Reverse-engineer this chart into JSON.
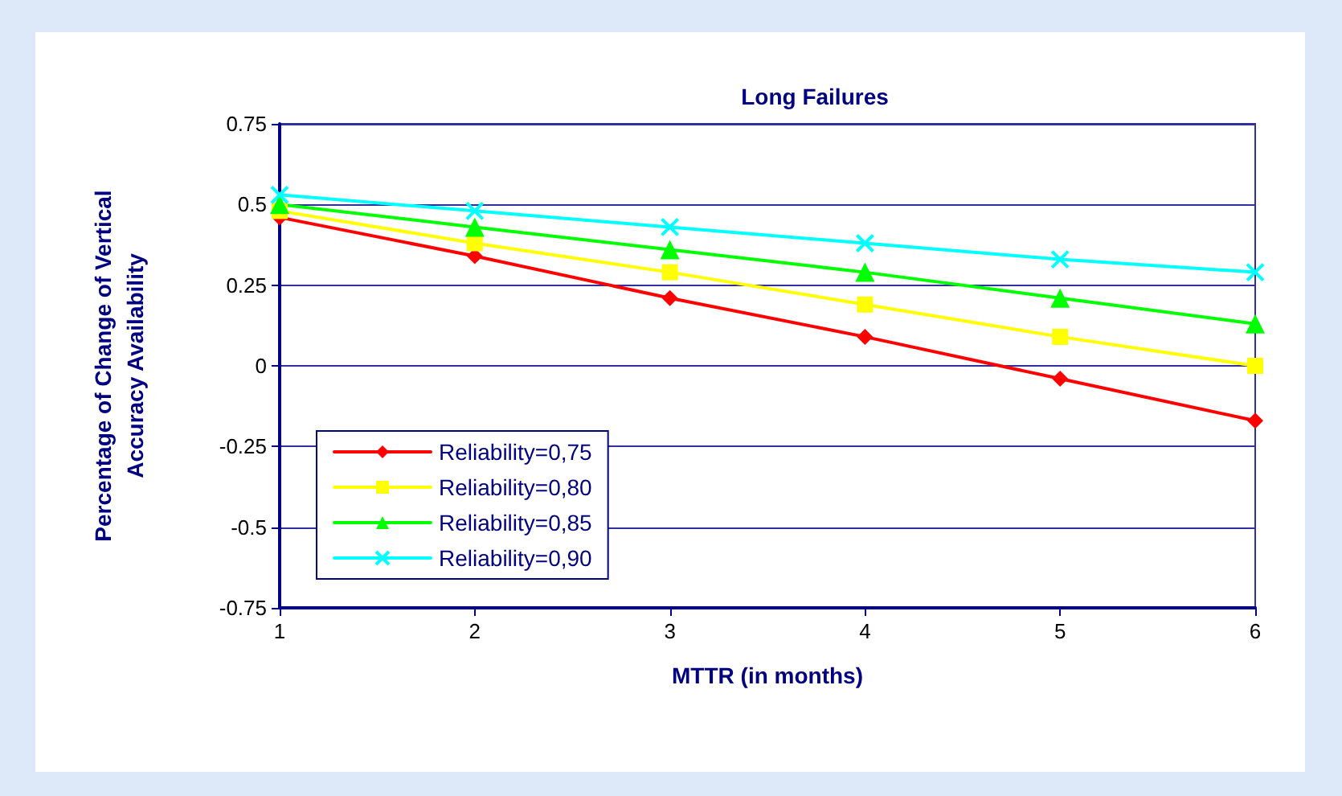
{
  "chart_data": {
    "type": "line",
    "title": "Long Failures",
    "xlabel": "MTTR (in months)",
    "ylabel": "Percentage of Change of Vertical\nAccuracy Availability",
    "x": [
      1,
      2,
      3,
      4,
      5,
      6
    ],
    "xlim": [
      1,
      6
    ],
    "xticks": [
      1,
      2,
      3,
      4,
      5,
      6
    ],
    "ylim": [
      -0.75,
      0.75
    ],
    "yticks": [
      -0.75,
      -0.5,
      -0.25,
      0,
      0.25,
      0.5,
      0.75
    ],
    "grid": "y",
    "legend": "bottom left",
    "line_style": "solid",
    "series": [
      {
        "name": "Reliability=0,75",
        "color": "#ff0000",
        "marker": "diamond",
        "values": [
          0.46,
          0.34,
          0.21,
          0.09,
          -0.04,
          -0.17
        ]
      },
      {
        "name": "Reliability=0,80",
        "color": "#ffff00",
        "marker": "square",
        "values": [
          0.48,
          0.38,
          0.29,
          0.19,
          0.09,
          0
        ]
      },
      {
        "name": "Reliability=0,85",
        "color": "#00ff00",
        "marker": "triangle",
        "values": [
          0.5,
          0.43,
          0.36,
          0.29,
          0.21,
          0.13
        ]
      },
      {
        "name": "Reliability=0,90",
        "color": "#00ffff",
        "marker": "cross",
        "values": [
          0.53,
          0.48,
          0.43,
          0.38,
          0.33,
          0.29
        ]
      }
    ]
  }
}
